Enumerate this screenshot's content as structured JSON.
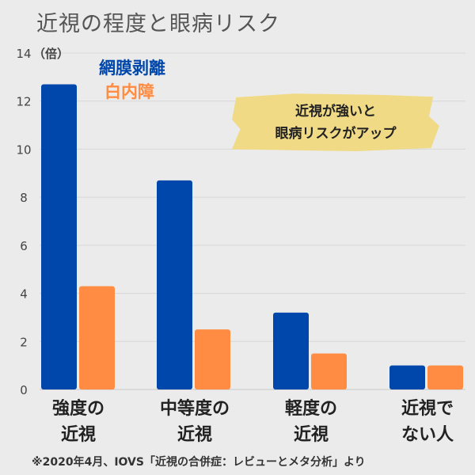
{
  "title": "近視の程度と眼病リスク",
  "banner": {
    "line1": "近視が強いと",
    "line2": "眼病リスクがアップ"
  },
  "source": "※2020年4月、IOVS「近視の合併症：レビューとメタ分析」より",
  "chart_data": {
    "type": "bar",
    "title": "近視の程度と眼病リスク",
    "ylabel": "（倍）",
    "ylim": [
      0,
      14
    ],
    "yticks": [
      0,
      2,
      4,
      6,
      8,
      10,
      12,
      14
    ],
    "grid": true,
    "legend_placement": "top-left",
    "categories": [
      [
        "強度の",
        "近視"
      ],
      [
        "中等度の",
        "近視"
      ],
      [
        "軽度の",
        "近視"
      ],
      [
        "近視で",
        "ない人"
      ]
    ],
    "series": [
      {
        "name": "網膜剥離",
        "color": "#0047ab",
        "values": [
          12.7,
          8.7,
          3.2,
          1.0
        ]
      },
      {
        "name": "白内障",
        "color": "#ff8c42",
        "values": [
          4.3,
          2.5,
          1.5,
          1.0
        ]
      }
    ]
  }
}
